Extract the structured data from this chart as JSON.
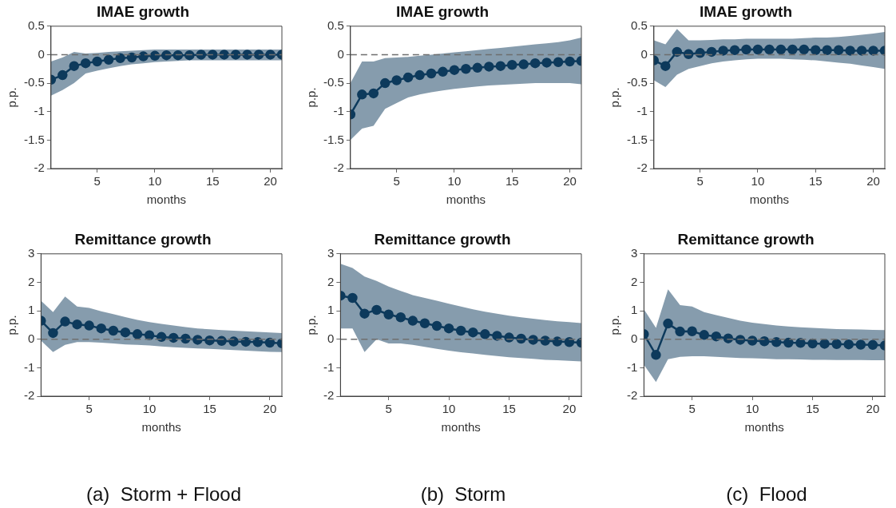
{
  "chart_data": [
    {
      "type": "line",
      "title": "IMAE growth",
      "xlabel": "months",
      "ylabel": "p.p.",
      "x": [
        1,
        2,
        3,
        4,
        5,
        6,
        7,
        8,
        9,
        10,
        11,
        12,
        13,
        14,
        15,
        16,
        17,
        18,
        19,
        20,
        21
      ],
      "xlim": [
        1,
        21
      ],
      "xticks": [
        5,
        10,
        15,
        20
      ],
      "ylim": [
        -2,
        0.5
      ],
      "yticks": [
        -2,
        -1.5,
        -1,
        -0.5,
        0,
        0.5
      ],
      "grid": false,
      "legend": false,
      "marker": "circle",
      "ref_lines": [
        {
          "axis": "y",
          "value": 0,
          "line_style": "dashed",
          "color": "#6e6e6e"
        }
      ],
      "series": [
        {
          "color": "#0d3a5c",
          "values": [
            -0.44,
            -0.36,
            -0.2,
            -0.15,
            -0.12,
            -0.09,
            -0.06,
            -0.05,
            -0.03,
            -0.02,
            -0.01,
            -0.01,
            -0.01,
            0,
            0,
            0,
            0,
            0,
            0,
            0,
            0
          ],
          "lower": [
            -0.72,
            -0.62,
            -0.5,
            -0.33,
            -0.28,
            -0.24,
            -0.2,
            -0.17,
            -0.15,
            -0.13,
            -0.12,
            -0.11,
            -0.1,
            -0.1,
            -0.1,
            -0.1,
            -0.1,
            -0.1,
            -0.1,
            -0.1,
            -0.1
          ],
          "upper": [
            -0.12,
            -0.05,
            0.05,
            0.02,
            0.03,
            0.05,
            0.06,
            0.07,
            0.08,
            0.09,
            0.09,
            0.09,
            0.09,
            0.09,
            0.09,
            0.09,
            0.09,
            0.09,
            0.09,
            0.09,
            0.09
          ]
        }
      ]
    },
    {
      "type": "line",
      "title": "IMAE growth",
      "xlabel": "months",
      "ylabel": "p.p.",
      "x": [
        1,
        2,
        3,
        4,
        5,
        6,
        7,
        8,
        9,
        10,
        11,
        12,
        13,
        14,
        15,
        16,
        17,
        18,
        19,
        20,
        21
      ],
      "xlim": [
        1,
        21
      ],
      "xticks": [
        5,
        10,
        15,
        20
      ],
      "ylim": [
        -2,
        0.5
      ],
      "yticks": [
        -2,
        -1.5,
        -1,
        -0.5,
        0,
        0.5
      ],
      "grid": false,
      "legend": false,
      "marker": "circle",
      "ref_lines": [
        {
          "axis": "y",
          "value": 0,
          "line_style": "dashed",
          "color": "#6e6e6e"
        }
      ],
      "series": [
        {
          "color": "#0d3a5c",
          "values": [
            -1.05,
            -0.7,
            -0.68,
            -0.5,
            -0.45,
            -0.4,
            -0.36,
            -0.33,
            -0.3,
            -0.27,
            -0.25,
            -0.23,
            -0.21,
            -0.2,
            -0.18,
            -0.17,
            -0.15,
            -0.14,
            -0.13,
            -0.12,
            -0.11
          ],
          "lower": [
            -1.5,
            -1.3,
            -1.25,
            -0.95,
            -0.85,
            -0.75,
            -0.7,
            -0.66,
            -0.63,
            -0.6,
            -0.58,
            -0.56,
            -0.54,
            -0.53,
            -0.52,
            -0.51,
            -0.5,
            -0.5,
            -0.5,
            -0.5,
            -0.52
          ],
          "upper": [
            -0.5,
            -0.12,
            -0.12,
            -0.06,
            -0.05,
            -0.04,
            -0.02,
            0,
            0.02,
            0.04,
            0.06,
            0.08,
            0.1,
            0.12,
            0.14,
            0.16,
            0.18,
            0.2,
            0.22,
            0.25,
            0.3
          ]
        }
      ]
    },
    {
      "type": "line",
      "title": "IMAE growth",
      "xlabel": "months",
      "ylabel": "p.p.",
      "x": [
        1,
        2,
        3,
        4,
        5,
        6,
        7,
        8,
        9,
        10,
        11,
        12,
        13,
        14,
        15,
        16,
        17,
        18,
        19,
        20,
        21
      ],
      "xlim": [
        1,
        21
      ],
      "xticks": [
        5,
        10,
        15,
        20
      ],
      "ylim": [
        -2,
        0.5
      ],
      "yticks": [
        -2,
        -1.5,
        -1,
        -0.5,
        0,
        0.5
      ],
      "grid": false,
      "legend": false,
      "marker": "circle",
      "ref_lines": [
        {
          "axis": "y",
          "value": 0,
          "line_style": "dashed",
          "color": "#6e6e6e"
        }
      ],
      "series": [
        {
          "color": "#0d3a5c",
          "values": [
            -0.1,
            -0.2,
            0.05,
            0.01,
            0.03,
            0.05,
            0.07,
            0.08,
            0.09,
            0.09,
            0.09,
            0.09,
            0.09,
            0.09,
            0.08,
            0.08,
            0.08,
            0.07,
            0.07,
            0.07,
            0.07
          ],
          "lower": [
            -0.45,
            -0.57,
            -0.35,
            -0.25,
            -0.2,
            -0.15,
            -0.12,
            -0.1,
            -0.08,
            -0.07,
            -0.07,
            -0.07,
            -0.08,
            -0.09,
            -0.1,
            -0.12,
            -0.14,
            -0.16,
            -0.19,
            -0.22,
            -0.25
          ],
          "upper": [
            0.25,
            0.18,
            0.45,
            0.25,
            0.25,
            0.26,
            0.27,
            0.27,
            0.28,
            0.28,
            0.28,
            0.28,
            0.28,
            0.29,
            0.3,
            0.3,
            0.31,
            0.33,
            0.35,
            0.37,
            0.4
          ]
        }
      ]
    },
    {
      "type": "line",
      "title": "Remittance growth",
      "xlabel": "months",
      "ylabel": "p.p.",
      "x": [
        1,
        2,
        3,
        4,
        5,
        6,
        7,
        8,
        9,
        10,
        11,
        12,
        13,
        14,
        15,
        16,
        17,
        18,
        19,
        20,
        21
      ],
      "xlim": [
        1,
        21
      ],
      "xticks": [
        5,
        10,
        15,
        20
      ],
      "ylim": [
        -2,
        3
      ],
      "yticks": [
        -2,
        -1,
        0,
        1,
        2,
        3
      ],
      "grid": false,
      "legend": false,
      "marker": "circle",
      "ref_lines": [
        {
          "axis": "y",
          "value": 0,
          "line_style": "dashed",
          "color": "#6e6e6e"
        }
      ],
      "annotations": [
        "(a)  Storm + Flood"
      ],
      "series": [
        {
          "color": "#0d3a5c",
          "values": [
            0.65,
            0.22,
            0.62,
            0.52,
            0.48,
            0.38,
            0.3,
            0.24,
            0.18,
            0.14,
            0.08,
            0.05,
            0.02,
            -0.02,
            -0.04,
            -0.06,
            -0.08,
            -0.09,
            -0.1,
            -0.12,
            -0.14
          ],
          "lower": [
            -0.05,
            -0.45,
            -0.2,
            -0.1,
            -0.1,
            -0.12,
            -0.15,
            -0.18,
            -0.2,
            -0.22,
            -0.25,
            -0.28,
            -0.3,
            -0.32,
            -0.34,
            -0.36,
            -0.38,
            -0.4,
            -0.42,
            -0.44,
            -0.45
          ],
          "upper": [
            1.35,
            0.95,
            1.5,
            1.15,
            1.1,
            0.98,
            0.88,
            0.78,
            0.68,
            0.6,
            0.54,
            0.48,
            0.43,
            0.38,
            0.35,
            0.32,
            0.3,
            0.28,
            0.26,
            0.24,
            0.22
          ]
        }
      ]
    },
    {
      "type": "line",
      "title": "Remittance growth",
      "xlabel": "months",
      "ylabel": "p.p.",
      "x": [
        1,
        2,
        3,
        4,
        5,
        6,
        7,
        8,
        9,
        10,
        11,
        12,
        13,
        14,
        15,
        16,
        17,
        18,
        19,
        20,
        21
      ],
      "xlim": [
        1,
        21
      ],
      "xticks": [
        5,
        10,
        15,
        20
      ],
      "ylim": [
        -2,
        3
      ],
      "yticks": [
        -2,
        -1,
        0,
        1,
        2,
        3
      ],
      "grid": false,
      "legend": false,
      "marker": "circle",
      "ref_lines": [
        {
          "axis": "y",
          "value": 0,
          "line_style": "dashed",
          "color": "#6e6e6e"
        }
      ],
      "annotations": [
        "(b)  Storm"
      ],
      "series": [
        {
          "color": "#0d3a5c",
          "values": [
            1.53,
            1.45,
            0.9,
            1.03,
            0.87,
            0.77,
            0.65,
            0.56,
            0.47,
            0.38,
            0.3,
            0.24,
            0.18,
            0.12,
            0.06,
            0.02,
            -0.02,
            -0.05,
            -0.08,
            -0.1,
            -0.12
          ],
          "lower": [
            0.38,
            0.38,
            -0.45,
            0,
            -0.15,
            -0.15,
            -0.2,
            -0.27,
            -0.34,
            -0.4,
            -0.46,
            -0.5,
            -0.55,
            -0.59,
            -0.63,
            -0.66,
            -0.69,
            -0.72,
            -0.74,
            -0.76,
            -0.78
          ],
          "upper": [
            2.65,
            2.5,
            2.2,
            2.05,
            1.85,
            1.7,
            1.55,
            1.45,
            1.35,
            1.25,
            1.15,
            1.05,
            0.97,
            0.9,
            0.83,
            0.77,
            0.72,
            0.67,
            0.63,
            0.6,
            0.57
          ]
        }
      ]
    },
    {
      "type": "line",
      "title": "Remittance growth",
      "xlabel": "months",
      "ylabel": "p.p.",
      "x": [
        1,
        2,
        3,
        4,
        5,
        6,
        7,
        8,
        9,
        10,
        11,
        12,
        13,
        14,
        15,
        16,
        17,
        18,
        19,
        20,
        21
      ],
      "xlim": [
        1,
        21
      ],
      "xticks": [
        5,
        10,
        15,
        20
      ],
      "ylim": [
        -2,
        3
      ],
      "yticks": [
        -2,
        -1,
        0,
        1,
        2,
        3
      ],
      "grid": false,
      "legend": false,
      "marker": "circle",
      "ref_lines": [
        {
          "axis": "y",
          "value": 0,
          "line_style": "dashed",
          "color": "#6e6e6e"
        }
      ],
      "annotations": [
        "(c)  Flood"
      ],
      "series": [
        {
          "color": "#0d3a5c",
          "values": [
            0.18,
            -0.55,
            0.55,
            0.27,
            0.28,
            0.15,
            0.1,
            0.03,
            -0.02,
            -0.05,
            -0.07,
            -0.1,
            -0.12,
            -0.13,
            -0.15,
            -0.16,
            -0.17,
            -0.18,
            -0.19,
            -0.2,
            -0.22
          ],
          "lower": [
            -0.9,
            -1.5,
            -0.7,
            -0.62,
            -0.6,
            -0.6,
            -0.62,
            -0.64,
            -0.66,
            -0.67,
            -0.68,
            -0.7,
            -0.7,
            -0.71,
            -0.72,
            -0.72,
            -0.73,
            -0.73,
            -0.73,
            -0.74,
            -0.74
          ],
          "upper": [
            1.05,
            0.4,
            1.75,
            1.2,
            1.15,
            0.95,
            0.85,
            0.75,
            0.65,
            0.58,
            0.53,
            0.48,
            0.45,
            0.42,
            0.4,
            0.38,
            0.36,
            0.35,
            0.34,
            0.33,
            0.32
          ]
        }
      ]
    }
  ]
}
